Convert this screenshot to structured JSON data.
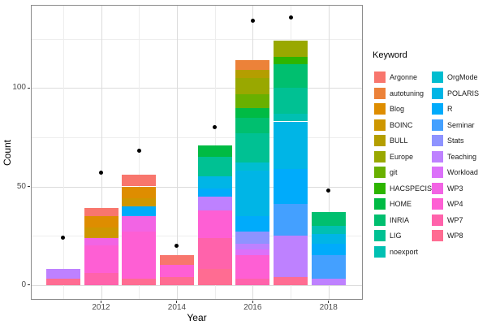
{
  "figure": {
    "background": "#ffffff"
  },
  "axes": {
    "x": {
      "label": "Year",
      "ticks": [
        "2012",
        "2014",
        "2016",
        "2018"
      ],
      "tick_years": [
        2012,
        2014,
        2016,
        2018
      ]
    },
    "y": {
      "label": "Count",
      "ticks": [
        "0",
        "50",
        "100"
      ],
      "tick_values": [
        0,
        50,
        100
      ]
    }
  },
  "legend": {
    "title": "Keyword",
    "position": "right",
    "items": [
      {
        "label": "Argonne",
        "color": "#F8766D"
      },
      {
        "label": "autotuning",
        "color": "#EC8239"
      },
      {
        "label": "Blog",
        "color": "#DE8D00"
      },
      {
        "label": "BOINC",
        "color": "#CE9700"
      },
      {
        "label": "BULL",
        "color": "#B49E00"
      },
      {
        "label": "Europe",
        "color": "#99A800"
      },
      {
        "label": "git",
        "color": "#69B000"
      },
      {
        "label": "HACSPECIS",
        "color": "#2DB500"
      },
      {
        "label": "HOME",
        "color": "#00BB44"
      },
      {
        "label": "INRIA",
        "color": "#00BF6F"
      },
      {
        "label": "LIG",
        "color": "#00C193"
      },
      {
        "label": "noexport",
        "color": "#00C0B2"
      },
      {
        "label": "OrgMode",
        "color": "#00BDD0"
      },
      {
        "label": "POLARIS",
        "color": "#00B5E6"
      },
      {
        "label": "R",
        "color": "#00ABFB"
      },
      {
        "label": "Seminar",
        "color": "#44A0FF"
      },
      {
        "label": "Stats",
        "color": "#8E93FF"
      },
      {
        "label": "Teaching",
        "color": "#BE81FF"
      },
      {
        "label": "Workload",
        "color": "#DC71FA"
      },
      {
        "label": "WP3",
        "color": "#F264E4"
      },
      {
        "label": "WP4",
        "color": "#FE5FD4"
      },
      {
        "label": "WP7",
        "color": "#FF63AB"
      },
      {
        "label": "WP8",
        "color": "#FF6C92"
      }
    ],
    "column_split": 12
  },
  "chart_data": {
    "type": "bar",
    "stacked": true,
    "title": "",
    "xlabel": "Year",
    "ylabel": "Count",
    "x": [
      2011,
      2012,
      2013,
      2014,
      2015,
      2016,
      2017,
      2018
    ],
    "series": [
      {
        "name": "Argonne",
        "values": [
          0,
          4,
          6,
          5,
          0,
          0,
          0,
          0
        ]
      },
      {
        "name": "autotuning",
        "values": [
          0,
          0,
          0,
          0,
          0,
          5,
          0,
          0
        ]
      },
      {
        "name": "Blog",
        "values": [
          0,
          6,
          6,
          0,
          0,
          0,
          0,
          0
        ]
      },
      {
        "name": "BOINC",
        "values": [
          0,
          5,
          4,
          0,
          0,
          0,
          0,
          0
        ]
      },
      {
        "name": "BULL",
        "values": [
          0,
          0,
          0,
          0,
          0,
          4,
          0,
          0
        ]
      },
      {
        "name": "Europe",
        "values": [
          0,
          0,
          0,
          0,
          0,
          8,
          8,
          0
        ]
      },
      {
        "name": "git",
        "values": [
          0,
          0,
          0,
          0,
          0,
          7,
          0,
          0
        ]
      },
      {
        "name": "HACSPECIS",
        "values": [
          0,
          0,
          0,
          0,
          0,
          0,
          4,
          0
        ]
      },
      {
        "name": "HOME",
        "values": [
          0,
          0,
          0,
          0,
          6,
          5,
          0,
          0
        ]
      },
      {
        "name": "INRIA",
        "values": [
          0,
          0,
          0,
          0,
          0,
          8,
          12,
          7
        ]
      },
      {
        "name": "LIG",
        "values": [
          0,
          0,
          0,
          0,
          10,
          15,
          13,
          0
        ]
      },
      {
        "name": "noexport",
        "values": [
          0,
          0,
          0,
          0,
          0,
          0,
          4,
          4
        ]
      },
      {
        "name": "OrgMode",
        "values": [
          0,
          0,
          0,
          0,
          0,
          4,
          0,
          0
        ]
      },
      {
        "name": "POLARIS",
        "values": [
          0,
          0,
          0,
          0,
          6,
          23,
          24,
          5
        ]
      },
      {
        "name": "R",
        "values": [
          0,
          0,
          5,
          0,
          4,
          8,
          18,
          6
        ]
      },
      {
        "name": "Seminar",
        "values": [
          0,
          0,
          0,
          0,
          0,
          0,
          16,
          12
        ]
      },
      {
        "name": "Stats",
        "values": [
          0,
          0,
          0,
          0,
          0,
          6,
          0,
          0
        ]
      },
      {
        "name": "Teaching",
        "values": [
          5,
          0,
          0,
          0,
          7,
          3,
          21,
          3
        ]
      },
      {
        "name": "Workload",
        "values": [
          0,
          0,
          0,
          0,
          0,
          3,
          0,
          0
        ]
      },
      {
        "name": "WP3",
        "values": [
          0,
          4,
          8,
          0,
          0,
          0,
          0,
          0
        ]
      },
      {
        "name": "WP4",
        "values": [
          0,
          14,
          24,
          6,
          14,
          12,
          0,
          0
        ]
      },
      {
        "name": "WP7",
        "values": [
          0,
          6,
          0,
          0,
          16,
          3,
          0,
          0
        ]
      },
      {
        "name": "WP8",
        "values": [
          3,
          0,
          3,
          4,
          8,
          0,
          4,
          0
        ]
      }
    ],
    "bar_totals": [
      8,
      39,
      56,
      15,
      71,
      114,
      124,
      37
    ],
    "stack_order": "reverse-legend (last legend item at bottom of stack)",
    "points": {
      "name": "overlay-dots",
      "values": [
        24,
        57,
        68,
        20,
        80,
        134,
        136,
        48
      ]
    },
    "ylim": [
      -7,
      142
    ],
    "xlim": [
      2010.1,
      2018.9
    ],
    "x_minor": [
      2011,
      2013,
      2015,
      2017
    ],
    "y_minor": [
      25,
      75,
      125
    ],
    "grid": true,
    "legend_position": "right"
  }
}
